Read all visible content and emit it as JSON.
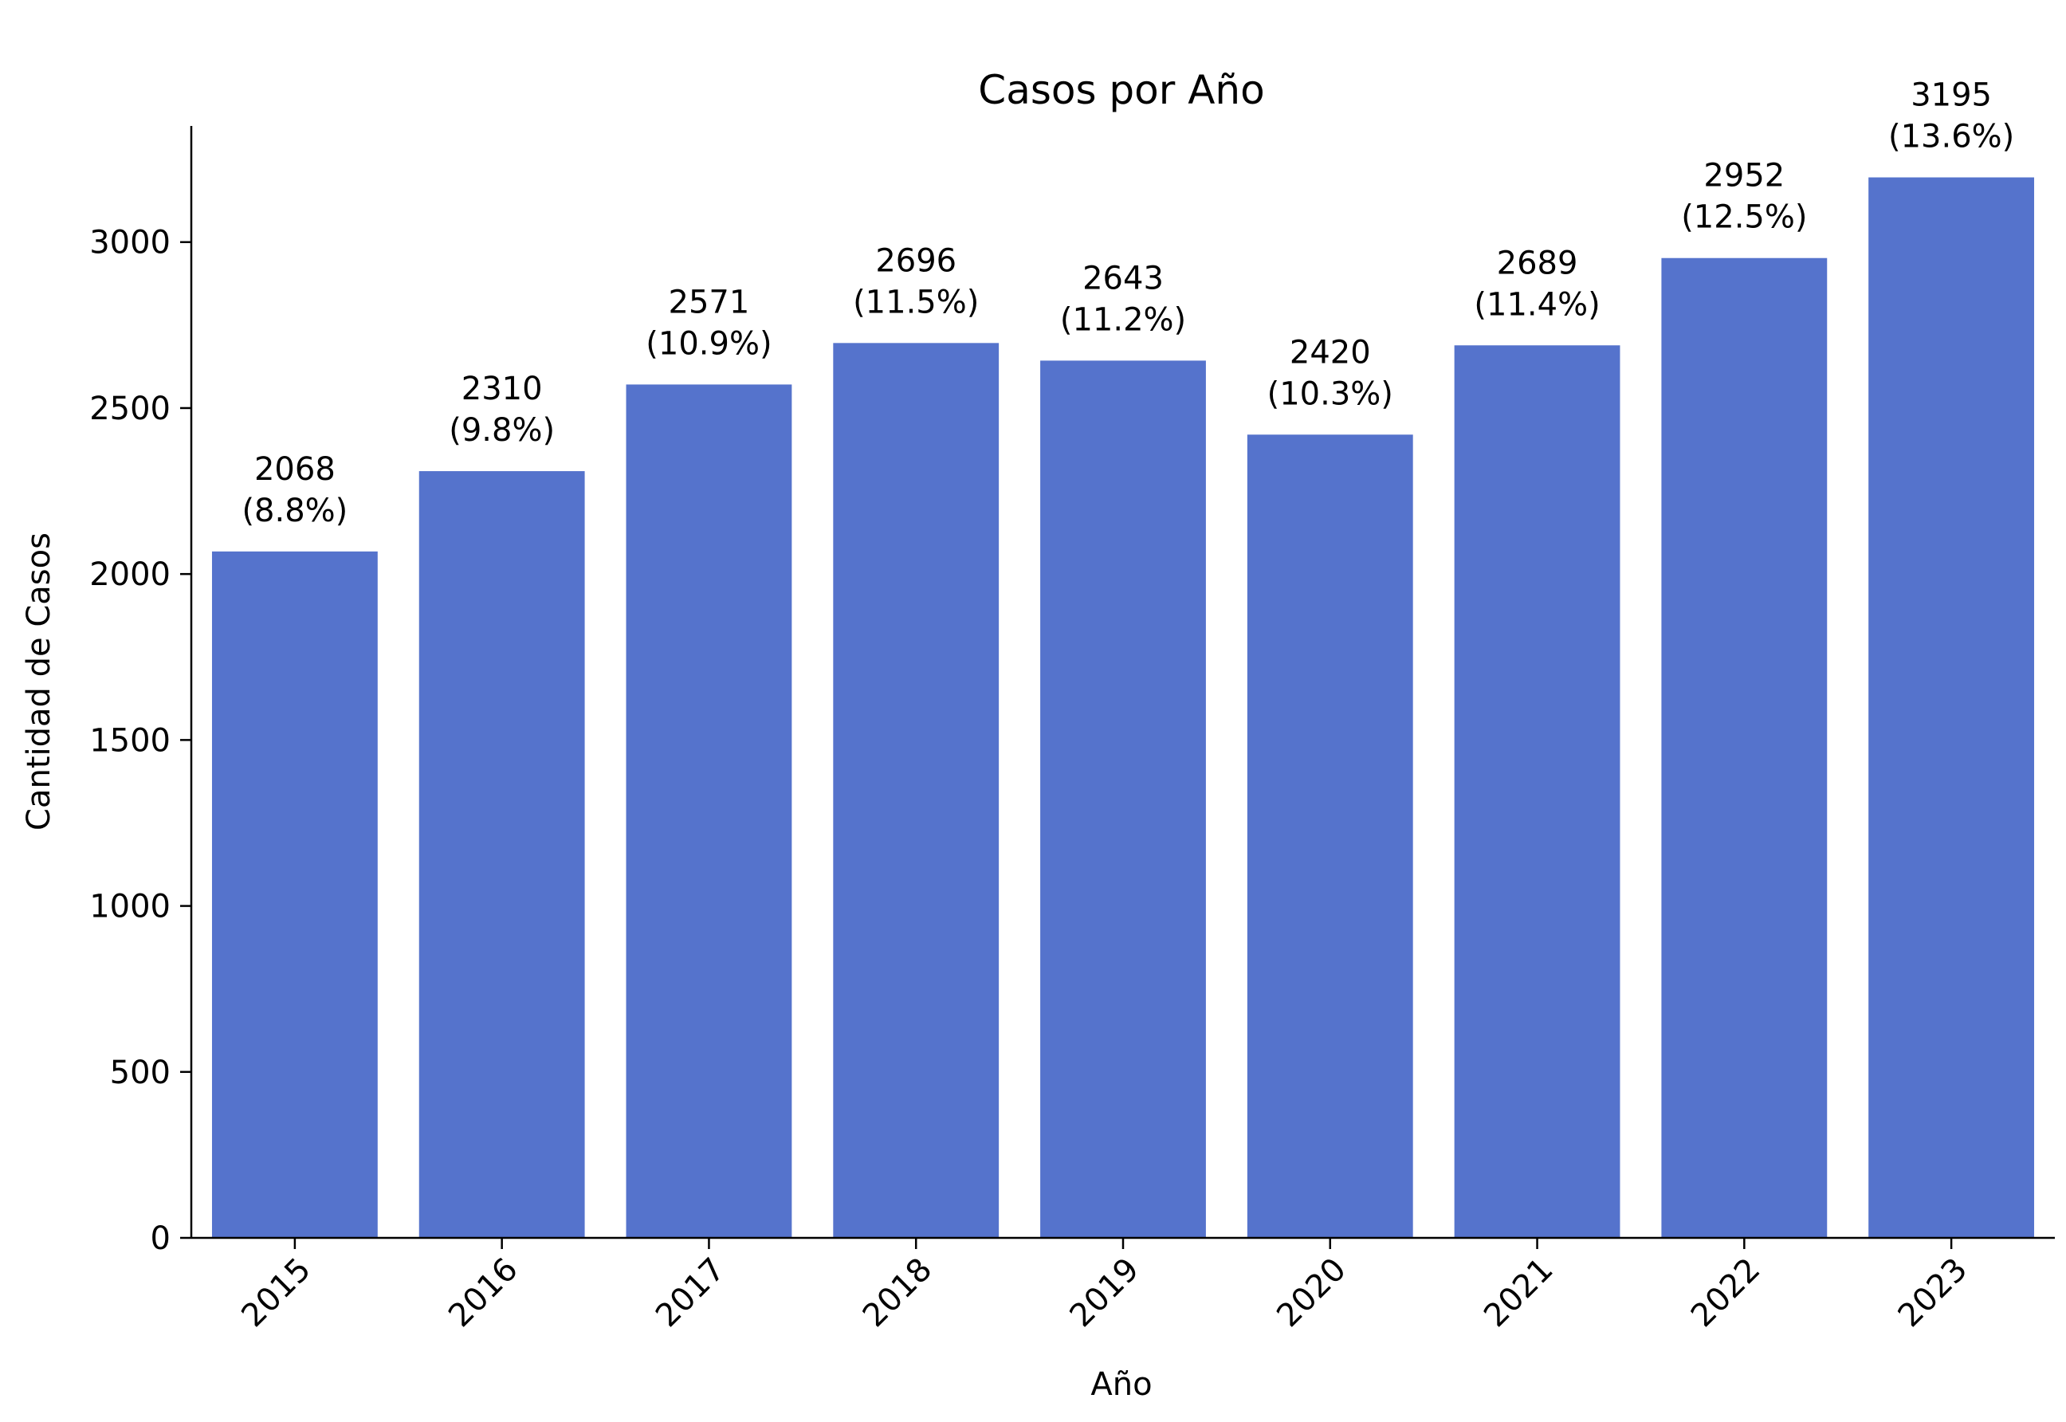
{
  "chart_data": {
    "type": "bar",
    "title": "Casos por Año",
    "xlabel": "Año",
    "ylabel": "Cantidad de Casos",
    "categories": [
      "2015",
      "2016",
      "2017",
      "2018",
      "2019",
      "2020",
      "2021",
      "2022",
      "2023"
    ],
    "values": [
      2068,
      2310,
      2571,
      2696,
      2643,
      2420,
      2689,
      2952,
      3195
    ],
    "percent_labels": [
      "(8.8%)",
      "(9.8%)",
      "(10.9%)",
      "(11.5%)",
      "(11.2%)",
      "(10.3%)",
      "(11.4%)",
      "(12.5%)",
      "(13.6%)"
    ],
    "ylim": [
      0,
      3350
    ],
    "yticks": [
      0,
      500,
      1000,
      1500,
      2000,
      2500,
      3000
    ],
    "grid": false,
    "legend": "none",
    "bar_color": "#5573cc"
  }
}
